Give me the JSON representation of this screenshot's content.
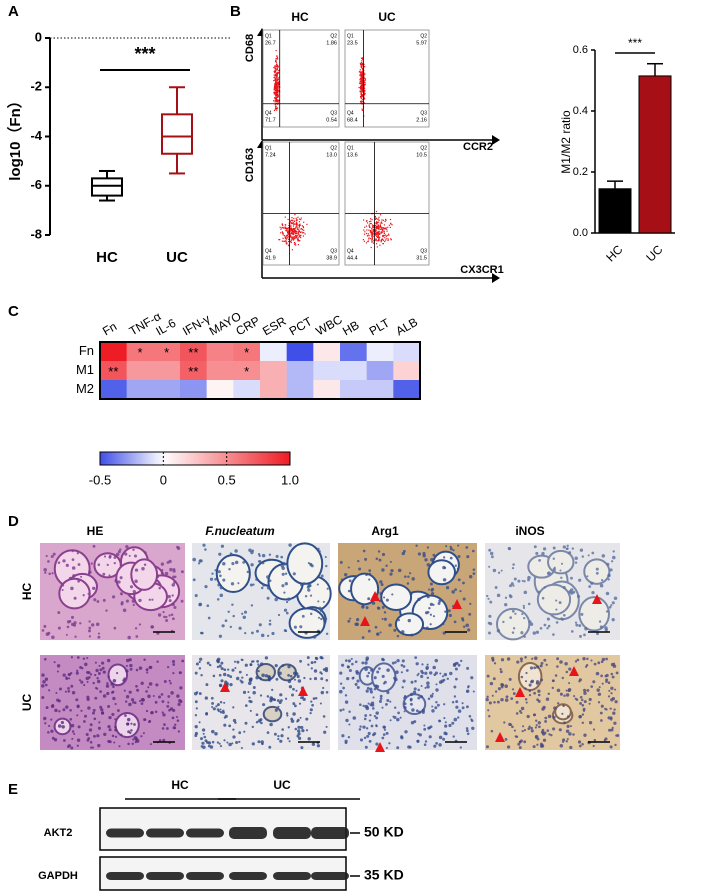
{
  "panel_labels": [
    "A",
    "B",
    "C",
    "D",
    "E"
  ],
  "chart_data": [
    {
      "type": "box",
      "y_label": "log10（Fn）",
      "categories": [
        "HC",
        "UC"
      ],
      "series": [
        {
          "name": "HC",
          "color": "#000000",
          "min": -6.6,
          "q1": -6.4,
          "median": -6.0,
          "q3": -5.7,
          "max": -5.4
        },
        {
          "name": "UC",
          "color": "#a50f15",
          "min": -5.5,
          "q1": -4.7,
          "median": -4.0,
          "q3": -3.1,
          "max": -2.0
        }
      ],
      "ylim": [
        -8,
        0
      ],
      "yticks": [
        0,
        -2,
        -4,
        -6,
        -8
      ],
      "reference_line": 0,
      "annotation": "***"
    },
    {
      "type": "bar",
      "y_label": "M1/M2 ratio",
      "categories": [
        "HC",
        "UC"
      ],
      "values": [
        0.145,
        0.515
      ],
      "errors": [
        0.025,
        0.04
      ],
      "colors": [
        "#000000",
        "#a50f15"
      ],
      "ylim": [
        0,
        0.6
      ],
      "yticks": [
        {
          "value": 0,
          "label": "0.0"
        },
        0.2,
        0.4,
        0.6
      ],
      "annotation": "***"
    },
    {
      "type": "heatmap",
      "rows": [
        "Fn",
        "M1",
        "M2"
      ],
      "columns": [
        "Fn",
        "TNF-α",
        "IL-6",
        "IFN-γ",
        "MAYO",
        "CRP",
        "ESR",
        "PCT",
        "WBC",
        "HB",
        "PLT",
        "ALB"
      ],
      "values": [
        [
          1.0,
          0.6,
          0.6,
          0.75,
          0.55,
          0.6,
          -0.05,
          -0.5,
          0.1,
          -0.4,
          -0.05,
          -0.1
        ],
        [
          0.75,
          0.45,
          0.45,
          0.7,
          0.5,
          0.5,
          0.35,
          -0.2,
          -0.1,
          -0.1,
          -0.25,
          0.2
        ],
        [
          -0.45,
          -0.25,
          -0.25,
          -0.3,
          0.05,
          -0.1,
          0.35,
          -0.2,
          0.1,
          -0.15,
          -0.15,
          -0.45
        ]
      ],
      "stars": [
        [
          null,
          "*",
          "*",
          "**",
          null,
          "*",
          null,
          null,
          null,
          null,
          null,
          null
        ],
        [
          "**",
          null,
          null,
          "**",
          null,
          "*",
          null,
          null,
          null,
          null,
          null,
          null
        ],
        [
          null,
          null,
          null,
          null,
          null,
          null,
          null,
          null,
          null,
          null,
          null,
          null
        ]
      ],
      "clim": [
        -0.5,
        1.0
      ],
      "cticks": [
        -0.5,
        0,
        0.5,
        {
          "value": 1.0,
          "label": "1.0"
        }
      ],
      "colors": {
        "low": "#3f4fe8",
        "mid": "#ffffff",
        "high": "#ee1c24"
      }
    }
  ],
  "flow": {
    "columns": [
      "HC",
      "UC"
    ],
    "rows": [
      {
        "y_label": "CD68",
        "x_label": "CCR2",
        "plots": [
          [
            {
              "name": "Q1",
              "value": "26.7"
            },
            {
              "name": "Q2",
              "value": "1.86"
            },
            {
              "name": "Q4",
              "value": "71.7"
            },
            {
              "name": "Q3",
              "value": "0.54"
            }
          ],
          [
            {
              "name": "Q1",
              "value": "23.5"
            },
            {
              "name": "Q2",
              "value": "5.97"
            },
            {
              "name": "Q4",
              "value": "68.4"
            },
            {
              "name": "Q3",
              "value": "2.16"
            }
          ]
        ]
      },
      {
        "y_label": "CD163",
        "x_label": "CX3CR1",
        "plots": [
          [
            {
              "name": "Q1",
              "value": "7.24"
            },
            {
              "name": "Q2",
              "value": "13.0"
            },
            {
              "name": "Q4",
              "value": "41.9"
            },
            {
              "name": "Q3",
              "value": "38.9"
            }
          ],
          [
            {
              "name": "Q1",
              "value": "13.6"
            },
            {
              "name": "Q2",
              "value": "10.5"
            },
            {
              "name": "Q4",
              "value": "44.4"
            },
            {
              "name": "Q3",
              "value": "31.5"
            }
          ]
        ]
      }
    ]
  },
  "histology": {
    "columns": [
      "HE",
      "F.nucleatum",
      "Arg1",
      "iNOS"
    ],
    "rows": [
      "HC",
      "UC"
    ]
  },
  "western": {
    "groups": [
      "HC",
      "UC"
    ],
    "rows": [
      {
        "name": "AKT2",
        "size": "50 KD"
      },
      {
        "name": "GAPDH",
        "size": "35 KD"
      }
    ]
  }
}
